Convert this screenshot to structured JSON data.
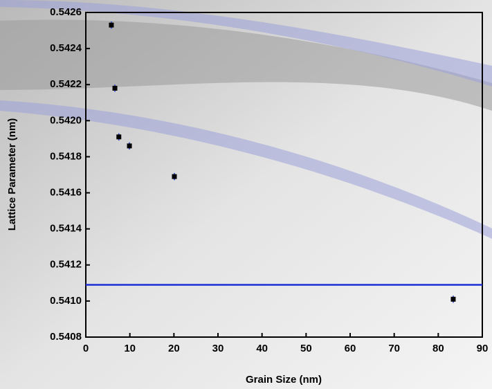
{
  "chart_data": {
    "type": "scatter",
    "x_label": "Grain Size (nm)",
    "y_label": "Lattice Parameter (nm)",
    "x": [
      5.8,
      6.6,
      7.5,
      9.9,
      20.1,
      83.4
    ],
    "values": [
      0.54253,
      0.54218,
      0.54191,
      0.54186,
      0.54169,
      0.54101
    ],
    "errors": [
      2e-05,
      2e-05,
      2e-05,
      2e-05,
      2e-05,
      2e-05
    ],
    "color": "#000000",
    "error_color": "#1f3fd8",
    "reference_line": {
      "value": 0.54109,
      "color": "#1a2fd6"
    },
    "xlim": [
      0,
      90
    ],
    "xticks": [
      0,
      10,
      20,
      30,
      40,
      50,
      60,
      70,
      80,
      90
    ],
    "ylim": [
      0.5408,
      0.5426
    ],
    "yticks": [
      0.5408,
      {
        "value": 0.541,
        "label": "0.5410"
      },
      0.5412,
      0.5414,
      0.5416,
      0.5418,
      {
        "value": 0.542,
        "label": "0.5420"
      },
      0.5422,
      0.5424,
      0.5426
    ]
  }
}
